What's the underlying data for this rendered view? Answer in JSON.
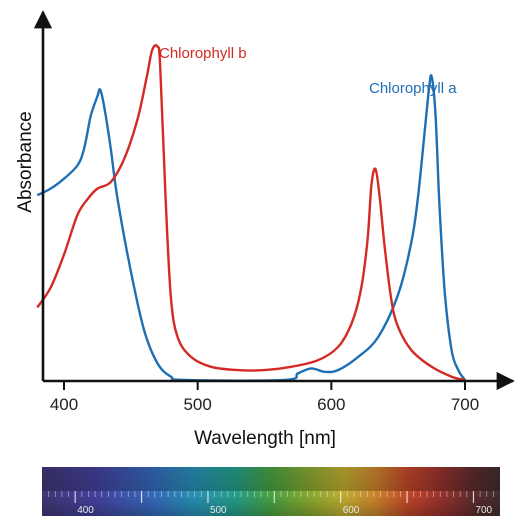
{
  "chart_data": {
    "type": "line",
    "title": "",
    "xlabel": "Wavelength [nm]",
    "ylabel": "Absorbance",
    "x_ticks": [
      400,
      500,
      600,
      700
    ],
    "xlim": [
      380,
      710
    ],
    "ylim": [
      0,
      1
    ],
    "grid": false,
    "series": [
      {
        "name": "Chlorophyll a",
        "color": "#1f6fb4",
        "points": [
          [
            380,
            0.56
          ],
          [
            390,
            0.58
          ],
          [
            400,
            0.61
          ],
          [
            410,
            0.65
          ],
          [
            415,
            0.7
          ],
          [
            420,
            0.8
          ],
          [
            425,
            0.86
          ],
          [
            427,
            0.88
          ],
          [
            430,
            0.83
          ],
          [
            435,
            0.7
          ],
          [
            440,
            0.55
          ],
          [
            450,
            0.33
          ],
          [
            460,
            0.15
          ],
          [
            470,
            0.05
          ],
          [
            480,
            0.01
          ],
          [
            490,
            0.0
          ],
          [
            565,
            0.0
          ],
          [
            575,
            0.02
          ],
          [
            585,
            0.035
          ],
          [
            595,
            0.025
          ],
          [
            605,
            0.03
          ],
          [
            620,
            0.07
          ],
          [
            635,
            0.13
          ],
          [
            650,
            0.26
          ],
          [
            660,
            0.42
          ],
          [
            665,
            0.56
          ],
          [
            670,
            0.76
          ],
          [
            673,
            0.88
          ],
          [
            675,
            0.92
          ],
          [
            678,
            0.8
          ],
          [
            681,
            0.52
          ],
          [
            685,
            0.26
          ],
          [
            690,
            0.09
          ],
          [
            695,
            0.03
          ],
          [
            700,
            0.0
          ]
        ]
      },
      {
        "name": "Chlorophyll b",
        "color": "#d42a25",
        "points": [
          [
            380,
            0.22
          ],
          [
            390,
            0.28
          ],
          [
            400,
            0.38
          ],
          [
            410,
            0.5
          ],
          [
            418,
            0.55
          ],
          [
            425,
            0.58
          ],
          [
            435,
            0.6
          ],
          [
            445,
            0.67
          ],
          [
            455,
            0.79
          ],
          [
            462,
            0.92
          ],
          [
            466,
            1.0
          ],
          [
            470,
            1.01
          ],
          [
            472,
            0.95
          ],
          [
            476,
            0.55
          ],
          [
            480,
            0.25
          ],
          [
            485,
            0.13
          ],
          [
            495,
            0.07
          ],
          [
            510,
            0.04
          ],
          [
            530,
            0.03
          ],
          [
            550,
            0.03
          ],
          [
            570,
            0.04
          ],
          [
            590,
            0.06
          ],
          [
            605,
            0.1
          ],
          [
            615,
            0.17
          ],
          [
            622,
            0.27
          ],
          [
            627,
            0.42
          ],
          [
            630,
            0.59
          ],
          [
            633,
            0.64
          ],
          [
            636,
            0.56
          ],
          [
            640,
            0.4
          ],
          [
            645,
            0.24
          ],
          [
            650,
            0.16
          ],
          [
            660,
            0.09
          ],
          [
            675,
            0.04
          ],
          [
            690,
            0.01
          ],
          [
            700,
            0.0
          ]
        ]
      }
    ],
    "spectrum_bar": {
      "tick_labels": [
        400,
        500,
        600,
        700
      ],
      "xlim": [
        375,
        720
      ]
    }
  }
}
